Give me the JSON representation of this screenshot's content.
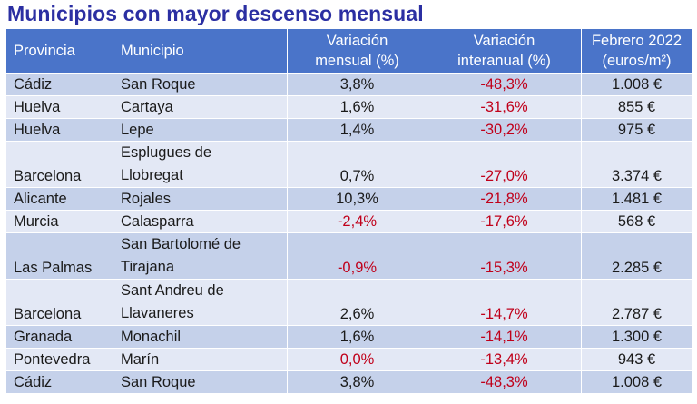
{
  "title": "Municipios con mayor descenso mensual",
  "columns": {
    "provincia": "Provincia",
    "municipio": "Municipio",
    "variacion_mensual": [
      "Variación",
      "mensual (%)"
    ],
    "variacion_interanual": [
      "Variación",
      "interanual (%)"
    ],
    "precio": [
      "Febrero 2022",
      "(euros/m²)"
    ]
  },
  "rows": [
    {
      "provincia": "Cádiz",
      "municipio": [
        "San Roque"
      ],
      "mensual": "3,8%",
      "interanual": "-48,3%",
      "precio": "1.008 €"
    },
    {
      "provincia": "Huelva",
      "municipio": [
        "Cartaya"
      ],
      "mensual": "1,6%",
      "interanual": "-31,6%",
      "precio": "855 €"
    },
    {
      "provincia": "Huelva",
      "municipio": [
        "Lepe"
      ],
      "mensual": "1,4%",
      "interanual": "-30,2%",
      "precio": "975 €"
    },
    {
      "provincia": "Barcelona",
      "municipio": [
        "Esplugues de",
        "Llobregat"
      ],
      "mensual": "0,7%",
      "interanual": "-27,0%",
      "precio": "3.374 €"
    },
    {
      "provincia": "Alicante",
      "municipio": [
        "Rojales"
      ],
      "mensual": "10,3%",
      "interanual": "-21,8%",
      "precio": "1.481 €"
    },
    {
      "provincia": "Murcia",
      "municipio": [
        "Calasparra"
      ],
      "mensual": "-2,4%",
      "interanual": "-17,6%",
      "precio": "568 €"
    },
    {
      "provincia": "Las Palmas",
      "municipio": [
        "San Bartolomé de",
        "Tirajana"
      ],
      "mensual": "-0,9%",
      "interanual": "-15,3%",
      "precio": "2.285 €"
    },
    {
      "provincia": "Barcelona",
      "municipio": [
        "Sant Andreu de",
        "Llavaneres"
      ],
      "mensual": "2,6%",
      "interanual": "-14,7%",
      "precio": "2.787 €"
    },
    {
      "provincia": "Granada",
      "municipio": [
        "Monachil"
      ],
      "mensual": "1,6%",
      "interanual": "-14,1%",
      "precio": "1.300 €"
    },
    {
      "provincia": "Pontevedra",
      "municipio": [
        "Marín"
      ],
      "mensual": "0,0%",
      "interanual": "-13,4%",
      "precio": "943 €"
    },
    {
      "provincia": "Cádiz",
      "municipio": [
        "San Roque"
      ],
      "mensual": "3,8%",
      "interanual": "-48,3%",
      "precio": "1.008 €"
    }
  ],
  "colors": {
    "title": "#2b2fa2",
    "header_bg": "#4a74c9",
    "row_odd": "#c5d1ea",
    "row_even": "#e3e8f5",
    "negative": "#c0001a"
  },
  "red_mensual_rows": [
    5,
    6,
    9
  ]
}
